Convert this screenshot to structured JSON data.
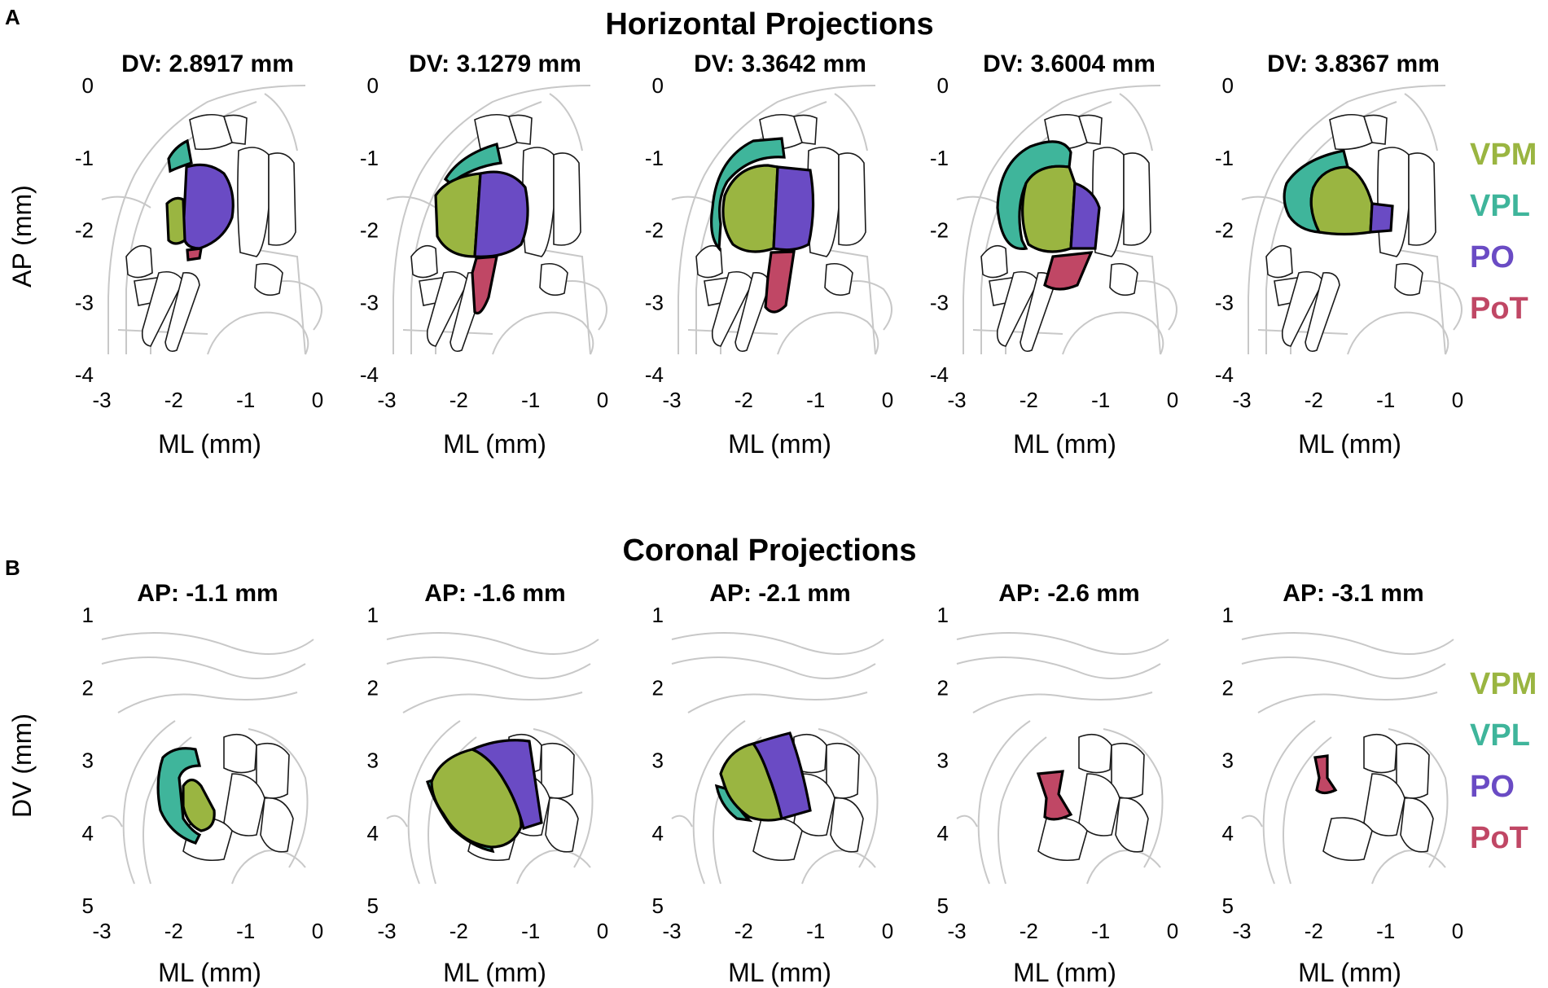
{
  "figure": {
    "colors": {
      "VPM": "#9AB541",
      "VPL": "#3FB59B",
      "PO": "#6A4BC4",
      "PoT": "#C04765"
    },
    "legend": [
      {
        "id": "VPM",
        "label": "VPM",
        "color": "#9AB541"
      },
      {
        "id": "VPL",
        "label": "VPL",
        "color": "#3FB59B"
      },
      {
        "id": "PO",
        "label": "PO",
        "color": "#6A4BC4"
      },
      {
        "id": "PoT",
        "label": "PoT",
        "color": "#C04765"
      }
    ],
    "horizontal": {
      "letter": "A",
      "title": "Horizontal Projections",
      "ylabel": "AP (mm)",
      "xlabel": "ML (mm)",
      "xticks": [
        "-3",
        "-2",
        "-1",
        "0"
      ],
      "yticks": [
        "0",
        "-1",
        "-2",
        "-3",
        "-4"
      ],
      "panels": [
        {
          "title": "DV: 2.8917 mm"
        },
        {
          "title": "DV: 3.1279 mm"
        },
        {
          "title": "DV: 3.3642 mm"
        },
        {
          "title": "DV: 3.6004 mm"
        },
        {
          "title": "DV: 3.8367 mm"
        }
      ]
    },
    "coronal": {
      "letter": "B",
      "title": "Coronal Projections",
      "ylabel": "DV (mm)",
      "xlabel": "ML (mm)",
      "xticks": [
        "-3",
        "-2",
        "-1",
        "0"
      ],
      "yticks": [
        "1",
        "2",
        "3",
        "4",
        "5"
      ],
      "panels": [
        {
          "title": "AP: -1.1 mm"
        },
        {
          "title": "AP: -1.6 mm"
        },
        {
          "title": "AP: -2.1 mm"
        },
        {
          "title": "AP: -2.6 mm"
        },
        {
          "title": "AP: -3.1 mm"
        }
      ]
    }
  }
}
